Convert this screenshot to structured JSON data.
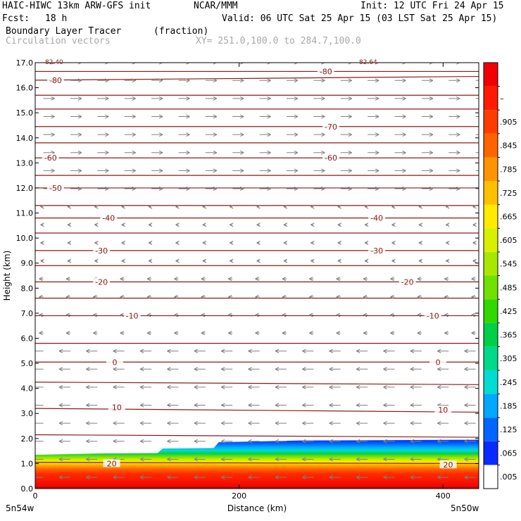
{
  "header": {
    "model": "HAIC-HIWC 13km ARW-GFS init",
    "org": "NCAR/MMM",
    "init": "Init: 12 UTC Fri 24 Apr 15",
    "fcst_label": "Fcst:",
    "fcst_value": "18 h",
    "valid": "Valid: 06 UTC Sat 25 Apr 15 (03 LST Sat 25 Apr 15)",
    "field": "Boundary Layer Tracer",
    "field_units": "(fraction)",
    "vectors": "Circulation vectors",
    "xy": "XY= 251.0,100.0 to 284.7,100.0"
  },
  "chart_data": {
    "type": "cross-section",
    "xlabel": "Distance (km)",
    "ylabel": "Height (km)",
    "xlim": [
      0,
      435
    ],
    "ylim": [
      0,
      17
    ],
    "x_ticks": [
      "0",
      "200",
      "400"
    ],
    "x_tick_values": [
      0,
      200,
      400
    ],
    "y_ticks": [
      "0.0",
      "1.0",
      "2.0",
      "3.0",
      "4.0",
      "5.0",
      "6.0",
      "7.0",
      "8.0",
      "9.0",
      "10.0",
      "11.0",
      "12.0",
      "13.0",
      "14.0",
      "15.0",
      "16.0",
      "17.0"
    ],
    "y_tick_values": [
      0,
      1,
      2,
      3,
      4,
      5,
      6,
      7,
      8,
      9,
      10,
      11,
      12,
      13,
      14,
      15,
      16,
      17
    ],
    "corner_labels": {
      "left": "5n54w",
      "right": "5n50w"
    },
    "top_corner_labels": {
      "left": "82.40",
      "right": "82.64"
    },
    "colorbar": {
      "labels": [
        ".005",
        ".065",
        ".125",
        ".185",
        ".245",
        ".305",
        ".365",
        ".425",
        ".485",
        ".545",
        ".605",
        ".665",
        ".725",
        ".785",
        ".845",
        ".905",
        "–"
      ],
      "colors": [
        "#ffffff",
        "#0a2bff",
        "#0066ff",
        "#00a8ff",
        "#00dcd2",
        "#00d88c",
        "#00d048",
        "#30d800",
        "#70e000",
        "#a8e800",
        "#d8f000",
        "#ffea00",
        "#ffc000",
        "#ff9400",
        "#ff6400",
        "#ff3c00",
        "#ff1a00",
        "#f00000"
      ]
    },
    "tracer_top_km": [
      [
        0,
        1.35
      ],
      [
        60,
        1.4
      ],
      [
        120,
        1.42
      ],
      [
        125,
        1.6
      ],
      [
        175,
        1.62
      ],
      [
        180,
        1.85
      ],
      [
        260,
        1.92
      ],
      [
        435,
        1.95
      ]
    ],
    "isotherm_heights_km": [
      0.05,
      1.05,
      2.15,
      3.2,
      4.25,
      5.05,
      5.8,
      6.9,
      7.6,
      8.25,
      8.9,
      9.5,
      10.2,
      10.8,
      11.3,
      12.0,
      12.5,
      13.2,
      13.8,
      14.45,
      15.15,
      15.7,
      16.3,
      16.65
    ],
    "isotherm_slopes_km": [
      0,
      -0.05,
      -0.1,
      -0.15,
      -0.1,
      0,
      0,
      0,
      0,
      0,
      0,
      0,
      0,
      0,
      0,
      0,
      0,
      0,
      0,
      0,
      0,
      0,
      0.15,
      0
    ],
    "isotherm_labels": [
      {
        "text": "20",
        "x": 75,
        "y": 1.0
      },
      {
        "text": "20",
        "x": 405,
        "y": 0.95
      },
      {
        "text": "10",
        "x": 80,
        "y": 3.25
      },
      {
        "text": "10",
        "x": 400,
        "y": 3.15
      },
      {
        "text": "0",
        "x": 78,
        "y": 5.05
      },
      {
        "text": "0",
        "x": 395,
        "y": 5.05
      },
      {
        "text": "-10",
        "x": 95,
        "y": 6.9
      },
      {
        "text": "-10",
        "x": 390,
        "y": 6.9
      },
      {
        "text": "-20",
        "x": 65,
        "y": 8.25
      },
      {
        "text": "-20",
        "x": 365,
        "y": 8.25
      },
      {
        "text": "-30",
        "x": 65,
        "y": 9.5
      },
      {
        "text": "-30",
        "x": 335,
        "y": 9.5
      },
      {
        "text": "-40",
        "x": 72,
        "y": 10.8
      },
      {
        "text": "-40",
        "x": 335,
        "y": 10.8
      },
      {
        "text": "-50",
        "x": 20,
        "y": 12.0
      },
      {
        "text": "-60",
        "x": 15,
        "y": 13.2
      },
      {
        "text": "-60",
        "x": 290,
        "y": 13.2
      },
      {
        "text": "-70",
        "x": 290,
        "y": 14.45
      },
      {
        "text": "-80",
        "x": 20,
        "y": 16.3
      },
      {
        "text": "-80",
        "x": 285,
        "y": 16.65
      }
    ]
  },
  "colors": {
    "isotherm": "#8b1a1a",
    "vector": "#808080",
    "axis": "#000000"
  }
}
